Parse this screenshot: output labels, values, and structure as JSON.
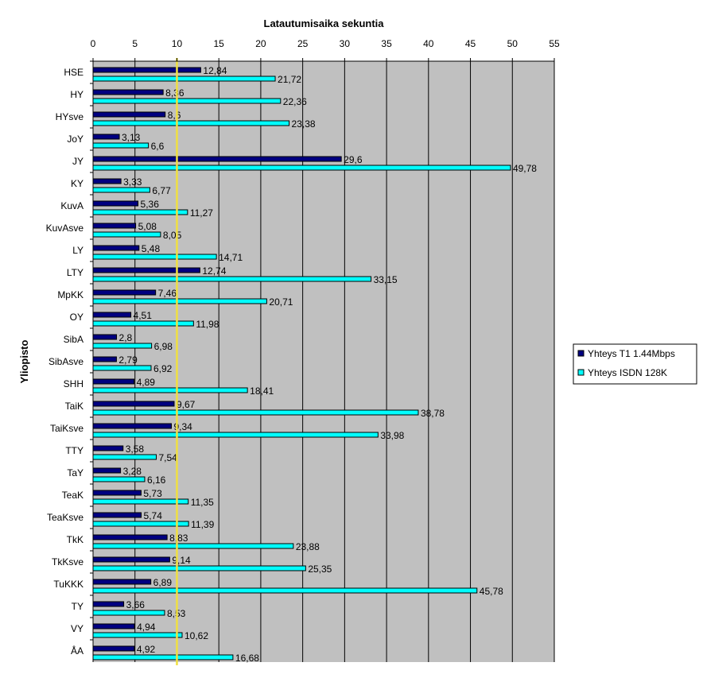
{
  "chart_data": {
    "type": "bar",
    "orientation": "horizontal",
    "title": "Latautumisaika sekuntia",
    "xlabel": "Latautumisaika sekuntia",
    "ylabel": "Yliopisto",
    "xlim": [
      0,
      55
    ],
    "xticks": [
      0,
      5,
      10,
      15,
      20,
      25,
      30,
      35,
      40,
      45,
      50,
      55
    ],
    "grid": true,
    "reference_line": {
      "value": 10,
      "color": "#f0e040"
    },
    "legend_position": "right",
    "categories": [
      "HSE",
      "HY",
      "HYsve",
      "JoY",
      "JY",
      "KY",
      "KuvA",
      "KuvAsve",
      "LY",
      "LTY",
      "MpKK",
      "OY",
      "SibA",
      "SibAsve",
      "SHH",
      "TaiK",
      "TaiKsve",
      "TTY",
      "TaY",
      "TeaK",
      "TeaKsve",
      "TkK",
      "TkKsve",
      "TuKKK",
      "TY",
      "VY",
      "ÅA"
    ],
    "series": [
      {
        "name": "Yhteys T1 1.44Mbps",
        "color": "#000080",
        "values": [
          12.84,
          8.36,
          8.6,
          3.13,
          29.6,
          3.33,
          5.36,
          5.08,
          5.48,
          12.74,
          7.46,
          4.51,
          2.8,
          2.79,
          4.89,
          9.67,
          9.34,
          3.58,
          3.28,
          5.73,
          5.74,
          8.83,
          9.14,
          6.89,
          3.66,
          4.94,
          4.92
        ],
        "labels": [
          "12,84",
          "8,36",
          "8,6",
          "3,13",
          "29,6",
          "3,33",
          "5,36",
          "5,08",
          "5,48",
          "12,74",
          "7,46",
          "4,51",
          "2,8",
          "2,79",
          "4,89",
          "9,67",
          "9,34",
          "3,58",
          "3,28",
          "5,73",
          "5,74",
          "8,83",
          "9,14",
          "6,89",
          "3,66",
          "4,94",
          "4,92"
        ]
      },
      {
        "name": "Yhteys ISDN 128K",
        "color": "#00ffff",
        "values": [
          21.72,
          22.36,
          23.38,
          6.6,
          49.78,
          6.77,
          11.27,
          8.05,
          14.71,
          33.15,
          20.71,
          11.98,
          6.98,
          6.92,
          18.41,
          38.78,
          33.98,
          7.54,
          6.16,
          11.35,
          11.39,
          23.88,
          25.35,
          45.78,
          8.53,
          10.62,
          16.68
        ],
        "labels": [
          "21,72",
          "22,36",
          "23,38",
          "6,6",
          "49,78",
          "6,77",
          "11,27",
          "8,05",
          "14,71",
          "33,15",
          "20,71",
          "11,98",
          "6,98",
          "6,92",
          "18,41",
          "38,78",
          "33,98",
          "7,54",
          "6,16",
          "11,35",
          "11,39",
          "23,88",
          "25,35",
          "45,78",
          "8,53",
          "10,62",
          "16,68"
        ]
      }
    ]
  }
}
